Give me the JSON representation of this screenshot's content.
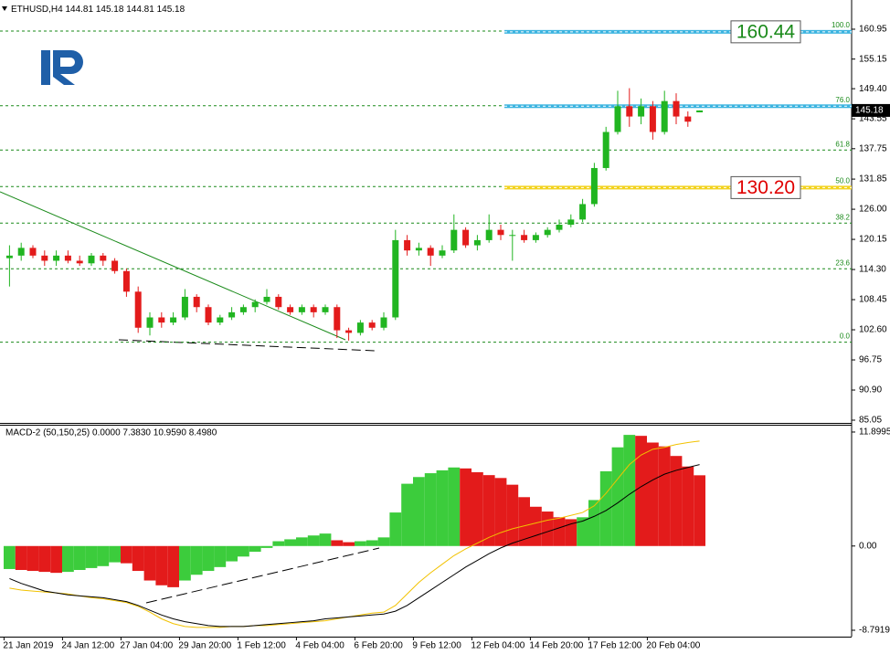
{
  "chart_data": [
    {
      "type": "candlestick",
      "title": "ETHUSD,H4",
      "categories": [
        "21 Jan 2019",
        null,
        null,
        null,
        null,
        "24 Jan 12:00",
        null,
        null,
        null,
        null,
        "27 Jan 04:00",
        null,
        null,
        null,
        null,
        "29 Jan 20:00",
        null,
        null,
        null,
        null,
        "1 Feb 12:00",
        null,
        null,
        null,
        null,
        "4 Feb 04:00",
        null,
        null,
        null,
        null,
        "6 Feb 20:00",
        null,
        null,
        null,
        null,
        "9 Feb 12:00",
        null,
        null,
        null,
        null,
        "12 Feb 04:00",
        null,
        null,
        null,
        null,
        "14 Feb 20:00",
        null,
        null,
        null,
        null,
        "17 Feb 12:00",
        null,
        null,
        null,
        null,
        "20 Feb 04:00",
        null,
        null,
        null,
        null
      ],
      "open": [
        116.5,
        117,
        118.5,
        117,
        116,
        117,
        116,
        115.5,
        117,
        116,
        114,
        110,
        103,
        105,
        104,
        105,
        109,
        107,
        104,
        105,
        106,
        107,
        108,
        109,
        107,
        106,
        107,
        106,
        107,
        102.5,
        102,
        104,
        103,
        105,
        120,
        118,
        118.5,
        117,
        118,
        122,
        119,
        120,
        122,
        121,
        121,
        120,
        121,
        122,
        123,
        124,
        127,
        134,
        141,
        146,
        144,
        146,
        141,
        147,
        144,
        144.81
      ],
      "high": [
        119,
        119.5,
        119,
        118,
        118,
        118,
        117,
        117.5,
        117.5,
        116.5,
        114.5,
        111,
        106,
        106,
        106,
        110.5,
        109.5,
        107.5,
        105.5,
        107,
        107.5,
        108.5,
        110.5,
        109.5,
        107.5,
        107.5,
        107.5,
        107.5,
        107.5,
        103,
        104.5,
        104.5,
        106,
        122,
        121,
        119.5,
        119,
        119,
        125,
        122.5,
        121,
        125,
        123,
        122,
        122,
        121.5,
        122.5,
        124,
        125,
        128,
        135,
        142,
        149,
        149.5,
        147.5,
        147,
        149,
        148.5,
        145,
        145.18
      ],
      "low": [
        111,
        116,
        116.5,
        115,
        115,
        115.5,
        115,
        115,
        115,
        113.5,
        109,
        102,
        101.5,
        103,
        103.5,
        104.5,
        106,
        103.5,
        103.5,
        104.5,
        105.5,
        106,
        107.5,
        106.5,
        105.5,
        105.5,
        105,
        105.5,
        101,
        100.5,
        101.5,
        102.5,
        102.5,
        104.5,
        117,
        117,
        115,
        116.5,
        117.5,
        118.5,
        118,
        119.5,
        120,
        116,
        119.5,
        119.5,
        120.5,
        121.5,
        122.5,
        123.5,
        126.5,
        133.5,
        140.5,
        142,
        142.5,
        139.5,
        140.5,
        142.5,
        142,
        144.81
      ],
      "close": [
        117,
        118.5,
        117,
        116,
        117,
        116,
        115.5,
        117,
        116,
        114,
        110,
        103,
        105,
        104,
        105,
        109,
        107,
        104,
        105,
        106,
        107,
        108,
        109,
        107,
        106,
        107,
        106,
        107,
        102.5,
        102,
        104,
        103,
        105,
        120,
        118,
        118.5,
        117,
        118,
        122,
        119,
        120,
        122,
        121,
        121,
        120,
        121,
        122,
        123,
        124,
        127,
        134,
        141,
        146,
        144,
        146,
        141,
        147,
        144,
        143,
        145.18
      ],
      "up_color": "#21b521",
      "down_color": "#e31b1b",
      "ylim": [
        84.52,
        166.62
      ],
      "yticks": [
        160.95,
        155.15,
        {
          "value": 149.4,
          "label": "149.40"
        },
        143.55,
        137.75,
        131.85,
        {
          "value": 126,
          "label": "126.00"
        },
        120.15,
        {
          "value": 114.3,
          "label": "114.30"
        },
        108.45,
        {
          "value": 102.6,
          "label": "102.60"
        },
        96.75,
        {
          "value": 90.9,
          "label": "90.90"
        },
        85.05
      ],
      "fib_levels": [
        {
          "value": 160.6,
          "label": "100.0"
        },
        {
          "value": 146.1,
          "label": "76.0"
        },
        {
          "value": 137.5,
          "label": "61.8"
        },
        {
          "value": 130.4,
          "label": "50.0"
        },
        {
          "value": 123.3,
          "label": "38.2"
        },
        {
          "value": 114.45,
          "label": "23.6"
        },
        {
          "value": 100.2,
          "label": "0.0"
        }
      ],
      "fib_color": "#1a8a1a",
      "lines": [
        {
          "value": 160.44,
          "label": "160.44",
          "color": "#3cb4e0",
          "label_color": "#1a8a1a"
        },
        {
          "value": 146.0,
          "color": "#3cb4e0"
        },
        {
          "value": 130.2,
          "label": "130.20",
          "color": "#f2d21e",
          "label_color": "#e00000"
        }
      ],
      "grid": false
    },
    {
      "type": "macd",
      "title": "MACD-2 (50,150,25) 0.0000 7.3830 10.9590 8.4980",
      "histogram": [
        -2.4,
        -2.5,
        -2.6,
        -2.7,
        -2.8,
        -2.7,
        -2.5,
        -2.3,
        -2.1,
        -1.7,
        -1.8,
        -2.6,
        -3.6,
        -4.1,
        -4.3,
        -3.6,
        -3.0,
        -2.6,
        -2.2,
        -1.6,
        -1.1,
        -0.6,
        -0.2,
        0.5,
        0.7,
        0.9,
        1.1,
        1.3,
        0.6,
        0.4,
        0.5,
        0.6,
        0.9,
        3.5,
        6.5,
        7.2,
        7.6,
        7.9,
        8.2,
        8.1,
        7.7,
        7.4,
        7.1,
        6.4,
        5.1,
        4.1,
        3.6,
        3.0,
        2.8,
        3.0,
        4.8,
        7.8,
        10.3,
        11.6,
        11.5,
        10.8,
        10.4,
        9.4,
        8.3,
        7.383
      ],
      "up_color": "#3ccc3c",
      "down_color": "#e31b1b",
      "series": [
        {
          "color": "#f2c200",
          "values": [
            -4.4,
            -4.6,
            -4.7,
            -4.8,
            -4.9,
            -5.0,
            -5.2,
            -5.4,
            -5.5,
            -5.7,
            -5.9,
            -6.3,
            -6.9,
            -7.6,
            -8.1,
            -8.4,
            -8.5,
            -8.5,
            -8.5,
            -8.4,
            -8.4,
            -8.3,
            -8.3,
            -8.2,
            -8.1,
            -8.0,
            -7.9,
            -7.8,
            -7.6,
            -7.4,
            -7.2,
            -7.0,
            -6.9,
            -6.2,
            -5.0,
            -3.8,
            -2.8,
            -1.9,
            -1.0,
            -0.3,
            0.3,
            0.9,
            1.4,
            1.8,
            2.1,
            2.4,
            2.7,
            2.9,
            3.2,
            3.5,
            4.2,
            5.5,
            7.0,
            8.5,
            9.5,
            10.1,
            10.3,
            10.6,
            10.8,
            10.959
          ]
        },
        {
          "color": "#000000",
          "values": [
            -3.4,
            -3.9,
            -4.3,
            -4.7,
            -4.9,
            -5.1,
            -5.2,
            -5.3,
            -5.4,
            -5.6,
            -5.8,
            -6.2,
            -6.7,
            -7.2,
            -7.6,
            -7.9,
            -8.1,
            -8.3,
            -8.4,
            -8.4,
            -8.4,
            -8.3,
            -8.2,
            -8.1,
            -8.0,
            -7.9,
            -7.8,
            -7.6,
            -7.5,
            -7.4,
            -7.3,
            -7.2,
            -7.1,
            -6.8,
            -6.2,
            -5.4,
            -4.6,
            -3.8,
            -3.0,
            -2.2,
            -1.5,
            -0.8,
            -0.2,
            0.3,
            0.7,
            1.1,
            1.5,
            1.9,
            2.3,
            2.6,
            3.1,
            3.7,
            4.5,
            5.4,
            6.2,
            6.9,
            7.5,
            7.9,
            8.2,
            8.498
          ]
        }
      ],
      "ylim": [
        -9.46,
        12.66
      ],
      "yticks": [
        11.8995,
        {
          "value": 0,
          "label": "0.00"
        },
        -8.7919
      ]
    }
  ]
}
